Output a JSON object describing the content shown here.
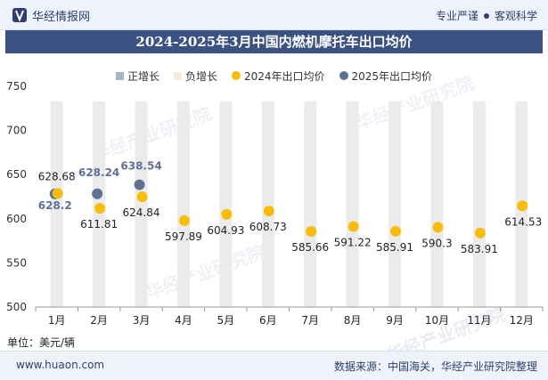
{
  "header": {
    "brand": "华经情报网",
    "tag1": "专业严谨",
    "tag2": "客观科学",
    "title": "2024-2025年3月中国内燃机摩托车出口均价"
  },
  "footer": {
    "unit": "单位：美元/辆",
    "url": "www.huaon.com",
    "source": "数据来源：中国海关，华经产业研究院整理"
  },
  "watermark": "华经产业研究院",
  "colors": {
    "pos": "#a6b4c8",
    "neg": "#f6ecd5",
    "s2024": "#f8bd0a",
    "s2025": "#5f7294",
    "bg_bar": "#ebebeb"
  },
  "chart_data": {
    "type": "scatter",
    "categories": [
      "1月",
      "2月",
      "3月",
      "4月",
      "5月",
      "6月",
      "7月",
      "8月",
      "9月",
      "10月",
      "11月",
      "12月"
    ],
    "ylim": [
      500,
      750
    ],
    "yticks": [
      500,
      550,
      600,
      650,
      700,
      750
    ],
    "legend": [
      "正增长",
      "负增长",
      "2024年出口均价",
      "2025年出口均价"
    ],
    "series": [
      {
        "name": "2024年出口均价",
        "values": [
          628.68,
          611.81,
          624.84,
          597.89,
          604.93,
          608.73,
          585.66,
          591.22,
          585.91,
          590.3,
          583.91,
          614.53
        ],
        "labels": [
          "628.68",
          "611.81",
          "624.84",
          "597.89",
          "604.93",
          "608.73",
          "585.66",
          "591.22",
          "585.91",
          "590.3",
          "583.91",
          "614.53"
        ]
      },
      {
        "name": "2025年出口均价",
        "values": [
          628.2,
          628.24,
          638.54,
          null,
          null,
          null,
          null,
          null,
          null,
          null,
          null,
          null
        ],
        "labels": [
          "628.2",
          "628.24",
          "638.54"
        ]
      }
    ]
  }
}
